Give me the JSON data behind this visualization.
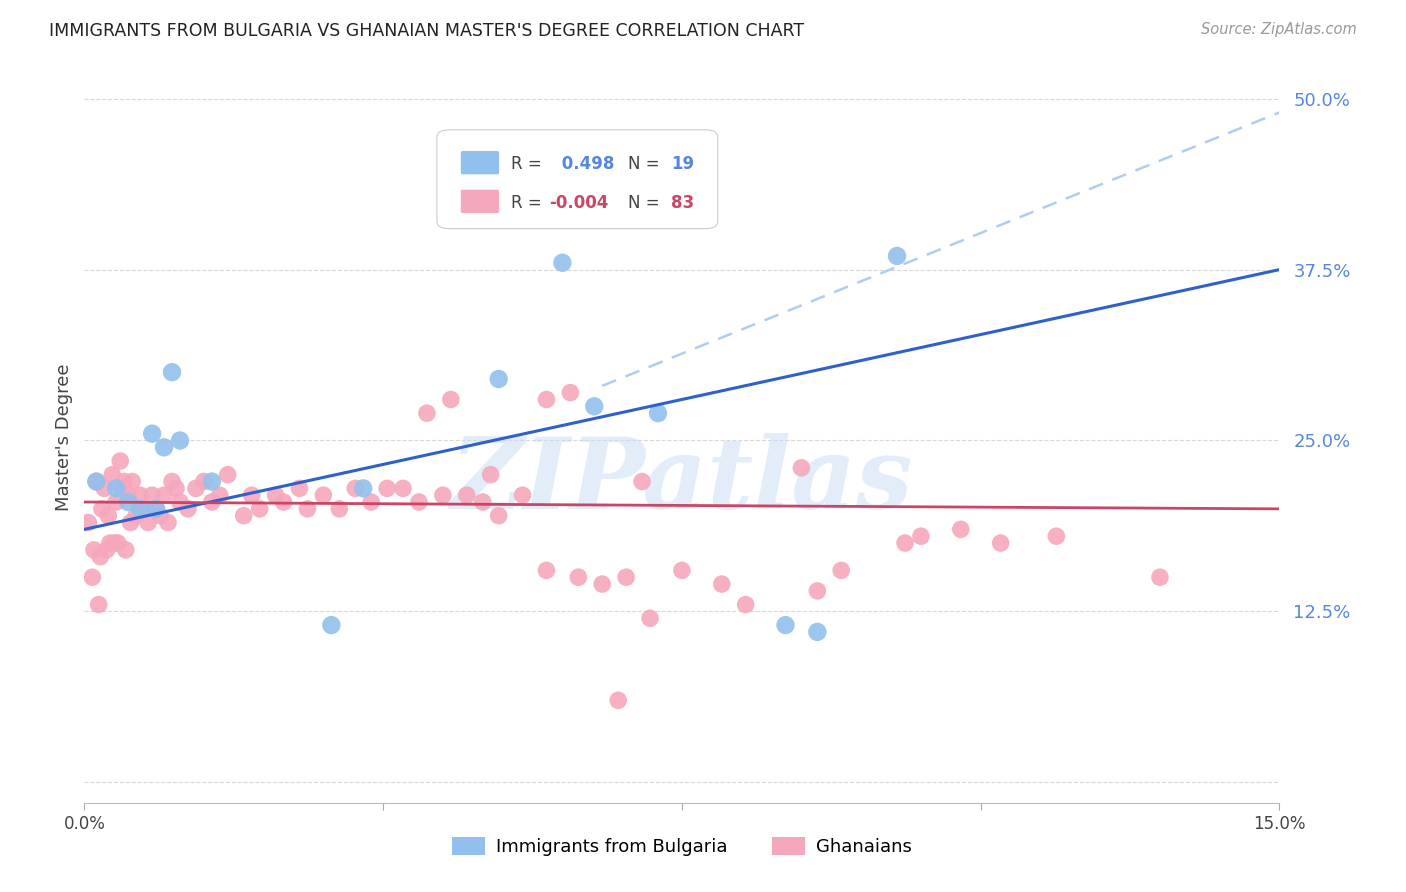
{
  "title": "IMMIGRANTS FROM BULGARIA VS GHANAIAN MASTER'S DEGREE CORRELATION CHART",
  "source": "Source: ZipAtlas.com",
  "ylabel": "Master's Degree",
  "x_min": 0.0,
  "x_max": 15.0,
  "y_min": -1.5,
  "y_max": 52.0,
  "y_ticks": [
    0.0,
    12.5,
    25.0,
    37.5,
    50.0
  ],
  "y_tick_labels": [
    "",
    "12.5%",
    "25.0%",
    "37.5%",
    "50.0%"
  ],
  "x_ticks": [
    0.0,
    3.75,
    7.5,
    11.25,
    15.0
  ],
  "x_tick_labels": [
    "0.0%",
    "",
    "",
    "",
    "15.0%"
  ],
  "background_color": "#ffffff",
  "grid_color": "#d8d8d8",
  "blue_color": "#92C0EE",
  "pink_color": "#F5A8BC",
  "blue_line_color": "#3060CC",
  "pink_line_color": "#CC4466",
  "dashed_line_color": "#B0CCEE",
  "watermark_text": "ZIPatlas",
  "legend_label_blue": "Immigrants from Bulgaria",
  "legend_label_pink": "Ghanaians",
  "blue_scatter_x": [
    0.15,
    0.4,
    0.55,
    0.7,
    0.85,
    0.9,
    1.0,
    1.1,
    1.2,
    1.6,
    3.1,
    3.5,
    5.2,
    6.0,
    6.4,
    7.2,
    8.8,
    9.2,
    10.2
  ],
  "blue_scatter_y": [
    22.0,
    21.5,
    20.5,
    20.0,
    25.5,
    20.0,
    24.5,
    30.0,
    25.0,
    22.0,
    11.5,
    21.5,
    29.5,
    38.0,
    27.5,
    27.0,
    11.5,
    11.0,
    38.5
  ],
  "pink_scatter_x": [
    0.05,
    0.1,
    0.12,
    0.15,
    0.18,
    0.2,
    0.22,
    0.25,
    0.28,
    0.3,
    0.32,
    0.35,
    0.38,
    0.4,
    0.42,
    0.45,
    0.48,
    0.5,
    0.52,
    0.55,
    0.58,
    0.6,
    0.65,
    0.7,
    0.75,
    0.8,
    0.85,
    0.9,
    0.95,
    1.0,
    1.05,
    1.1,
    1.15,
    1.2,
    1.3,
    1.4,
    1.5,
    1.6,
    1.7,
    1.8,
    2.0,
    2.1,
    2.2,
    2.4,
    2.5,
    2.7,
    2.8,
    3.0,
    3.2,
    3.4,
    3.6,
    3.8,
    4.0,
    4.2,
    4.5,
    4.8,
    5.0,
    5.2,
    5.5,
    5.8,
    6.2,
    6.5,
    6.8,
    7.0,
    7.5,
    8.0,
    9.0,
    9.5,
    10.5,
    11.0,
    4.3,
    4.6,
    5.1,
    6.1,
    7.1,
    8.3,
    9.2,
    10.3,
    11.5,
    12.2,
    13.5,
    5.8,
    6.7
  ],
  "pink_scatter_y": [
    19.0,
    15.0,
    17.0,
    22.0,
    13.0,
    16.5,
    20.0,
    21.5,
    17.0,
    19.5,
    17.5,
    22.5,
    17.5,
    20.5,
    17.5,
    23.5,
    21.5,
    22.0,
    17.0,
    21.0,
    19.0,
    22.0,
    19.5,
    21.0,
    20.0,
    19.0,
    21.0,
    20.0,
    19.5,
    21.0,
    19.0,
    22.0,
    21.5,
    20.5,
    20.0,
    21.5,
    22.0,
    20.5,
    21.0,
    22.5,
    19.5,
    21.0,
    20.0,
    21.0,
    20.5,
    21.5,
    20.0,
    21.0,
    20.0,
    21.5,
    20.5,
    21.5,
    21.5,
    20.5,
    21.0,
    21.0,
    20.5,
    19.5,
    21.0,
    15.5,
    15.0,
    14.5,
    15.0,
    22.0,
    15.5,
    14.5,
    23.0,
    15.5,
    18.0,
    18.5,
    27.0,
    28.0,
    22.5,
    28.5,
    12.0,
    13.0,
    14.0,
    17.5,
    17.5,
    18.0,
    15.0,
    28.0,
    6.0
  ],
  "blue_line_x0": 0.0,
  "blue_line_y0": 18.5,
  "blue_line_x1": 15.0,
  "blue_line_y1": 37.5,
  "pink_line_x0": 0.0,
  "pink_line_y0": 20.5,
  "pink_line_x1": 15.0,
  "pink_line_y1": 20.0,
  "dash_line_x0": 6.5,
  "dash_line_y0": 29.0,
  "dash_line_x1": 15.0,
  "dash_line_y1": 49.0
}
